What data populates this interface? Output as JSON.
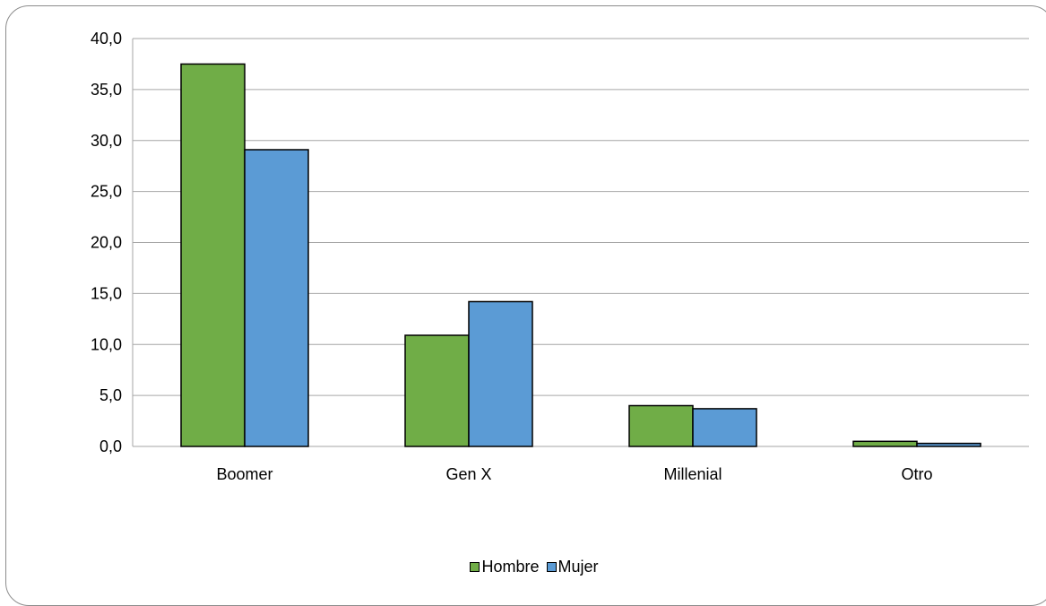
{
  "chart_data": {
    "type": "bar",
    "categories": [
      "Boomer",
      "Gen X",
      "Millenial",
      "Otro"
    ],
    "series": [
      {
        "name": "Hombre",
        "values": [
          37.5,
          10.9,
          4.0,
          0.5
        ],
        "color": "#70ad47"
      },
      {
        "name": "Mujer",
        "values": [
          29.1,
          14.2,
          3.7,
          0.3
        ],
        "color": "#5b9bd5"
      }
    ],
    "ylim": [
      0,
      40
    ],
    "yticks": [
      "0,0",
      "5,0",
      "10,0",
      "15,0",
      "20,0",
      "25,0",
      "30,0",
      "35,0",
      "40,0"
    ],
    "grid": true,
    "legend_position": "bottom"
  }
}
